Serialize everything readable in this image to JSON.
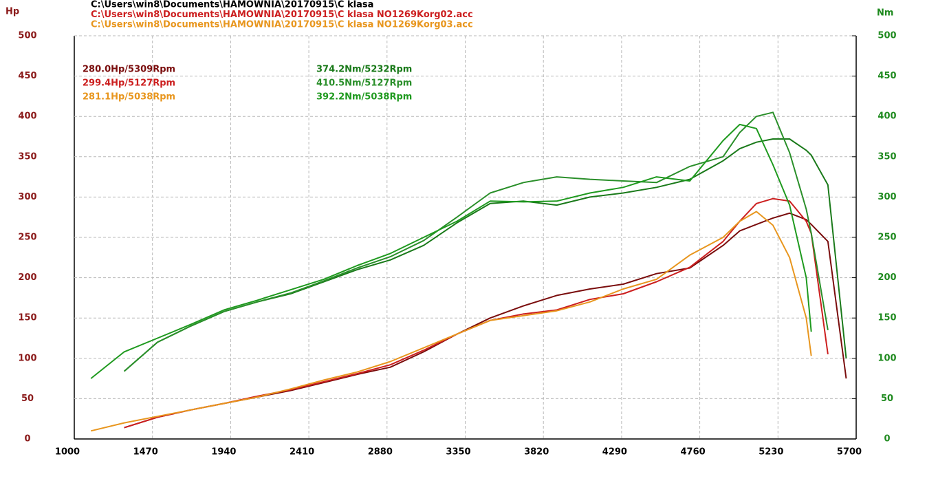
{
  "chart_data": {
    "type": "line",
    "header": [
      "C:\\Users\\win8\\Documents\\HAMOWNIA\\20170915\\C klasa",
      "C:\\Users\\win8\\Documents\\HAMOWNIA\\20170915\\C klasa NO1269Korg02.acc",
      "C:\\Users\\win8\\Documents\\HAMOWNIA\\20170915\\C klasa NO1269Korg03.acc"
    ],
    "header_colors": [
      "#000000",
      "#cc1f1f",
      "#e8961e"
    ],
    "y_label": "Hp",
    "y2_label": "Nm",
    "y_color": "#8b1a1a",
    "y2_color": "#1f8a1f",
    "x": [
      1100,
      1300,
      1500,
      1700,
      1900,
      2100,
      2300,
      2500,
      2700,
      2900,
      3100,
      3300,
      3500,
      3700,
      3900,
      4100,
      4300,
      4500,
      4700,
      4900,
      5000,
      5100,
      5200,
      5300,
      5400,
      5430,
      5530,
      5640
    ],
    "xlim": [
      1000,
      5700
    ],
    "xticks": [
      1000,
      1470,
      1940,
      2410,
      2880,
      3350,
      3820,
      4290,
      4760,
      5230,
      5700
    ],
    "ylim": [
      0,
      500
    ],
    "yticks": [
      0,
      50,
      100,
      150,
      200,
      250,
      300,
      350,
      400,
      450,
      500
    ],
    "y2lim": [
      0,
      500
    ],
    "y2ticks": [
      0,
      50,
      100,
      150,
      200,
      250,
      300,
      350,
      400,
      450,
      500
    ],
    "grid": true,
    "series": [
      {
        "name": "280.0Hp/5309Rpm",
        "color": "#7a0d0d",
        "values": [
          null,
          14,
          27,
          36,
          44,
          52,
          60,
          70,
          80,
          89,
          108,
          130,
          150,
          165,
          178,
          186,
          192,
          205,
          212,
          240,
          258,
          266,
          274,
          280,
          272,
          266,
          245,
          75
        ]
      },
      {
        "name": "299.4Hp/5127Rpm",
        "color": "#cc1f1f",
        "values": [
          null,
          14,
          27,
          36,
          44,
          53,
          61,
          71,
          81,
          92,
          110,
          130,
          147,
          155,
          160,
          173,
          180,
          195,
          213,
          245,
          270,
          292,
          298,
          295,
          270,
          255,
          105,
          null
        ]
      },
      {
        "name": "281.1Hp/5038Rpm",
        "color": "#e8961e",
        "values": [
          10,
          20,
          28,
          36,
          44,
          52,
          62,
          73,
          83,
          96,
          113,
          130,
          147,
          153,
          159,
          170,
          186,
          198,
          228,
          250,
          270,
          282,
          265,
          225,
          150,
          103,
          null,
          null
        ]
      },
      {
        "name": "374.2Nm/5232Rpm",
        "color": "#1a7a1a",
        "axis": "y2",
        "values": [
          null,
          84,
          120,
          140,
          158,
          170,
          180,
          195,
          210,
          222,
          240,
          268,
          292,
          295,
          290,
          300,
          305,
          312,
          322,
          345,
          360,
          368,
          372,
          372,
          358,
          352,
          315,
          100
        ]
      },
      {
        "name": "410.5Nm/5127Rpm",
        "color": "#2a8f2a",
        "axis": "y2",
        "values": [
          null,
          84,
          120,
          140,
          158,
          170,
          181,
          196,
          212,
          226,
          246,
          275,
          305,
          318,
          325,
          322,
          320,
          318,
          338,
          350,
          380,
          400,
          405,
          355,
          285,
          255,
          135,
          null
        ]
      },
      {
        "name": "392.2Nm/5038Rpm",
        "color": "#1f9a1f",
        "axis": "y2",
        "values": [
          75,
          108,
          125,
          142,
          160,
          172,
          185,
          198,
          215,
          230,
          250,
          270,
          295,
          294,
          295,
          305,
          312,
          325,
          320,
          370,
          390,
          385,
          340,
          290,
          200,
          133,
          null,
          null
        ]
      }
    ]
  }
}
